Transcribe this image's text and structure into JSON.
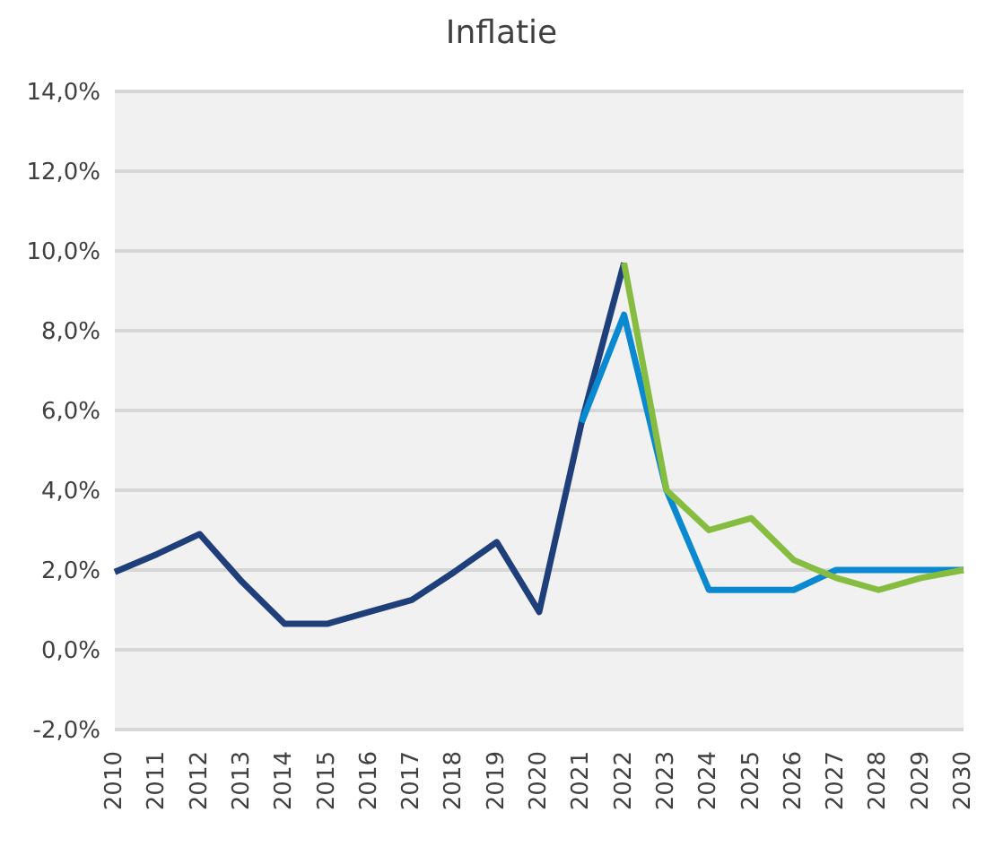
{
  "chart_data": {
    "type": "line",
    "title": "Inflatie",
    "categories": [
      "2010",
      "2011",
      "2012",
      "2013",
      "2014",
      "2015",
      "2016",
      "2017",
      "2018",
      "2019",
      "2020",
      "2021",
      "2022",
      "2023",
      "2024",
      "2025",
      "2026",
      "2027",
      "2028",
      "2029",
      "2030"
    ],
    "series": [
      {
        "color": "#1f3f7a",
        "values": [
          1.95,
          2.4,
          2.9,
          1.7,
          0.65,
          0.65,
          0.95,
          1.25,
          1.95,
          2.7,
          0.95,
          5.7,
          9.7,
          null,
          null,
          null,
          null,
          null,
          null,
          null,
          null
        ]
      },
      {
        "color": "#0a88d0",
        "values": [
          null,
          null,
          null,
          null,
          null,
          null,
          null,
          null,
          null,
          null,
          null,
          5.7,
          8.4,
          4.0,
          1.5,
          1.5,
          1.5,
          2.0,
          2.0,
          2.0,
          2.0
        ]
      },
      {
        "color": "#86bc3f",
        "values": [
          null,
          null,
          null,
          null,
          null,
          null,
          null,
          null,
          null,
          null,
          null,
          null,
          9.7,
          4.0,
          3.0,
          3.3,
          2.25,
          1.8,
          1.5,
          1.8,
          2.0
        ]
      }
    ],
    "ylim": [
      -2,
      14
    ],
    "yticks": [
      {
        "value": -2,
        "label": "-2,0%"
      },
      {
        "value": 0,
        "label": "0,0%"
      },
      {
        "value": 2,
        "label": "2,0%"
      },
      {
        "value": 4,
        "label": "4,0%"
      },
      {
        "value": 6,
        "label": "6,0%"
      },
      {
        "value": 8,
        "label": "8,0%"
      },
      {
        "value": 10,
        "label": "10,0%"
      },
      {
        "value": 12,
        "label": "12,0%"
      },
      {
        "value": 14,
        "label": "14,0%"
      }
    ],
    "grid": "y",
    "legend": false,
    "marker": "none",
    "line_style": "solid"
  }
}
